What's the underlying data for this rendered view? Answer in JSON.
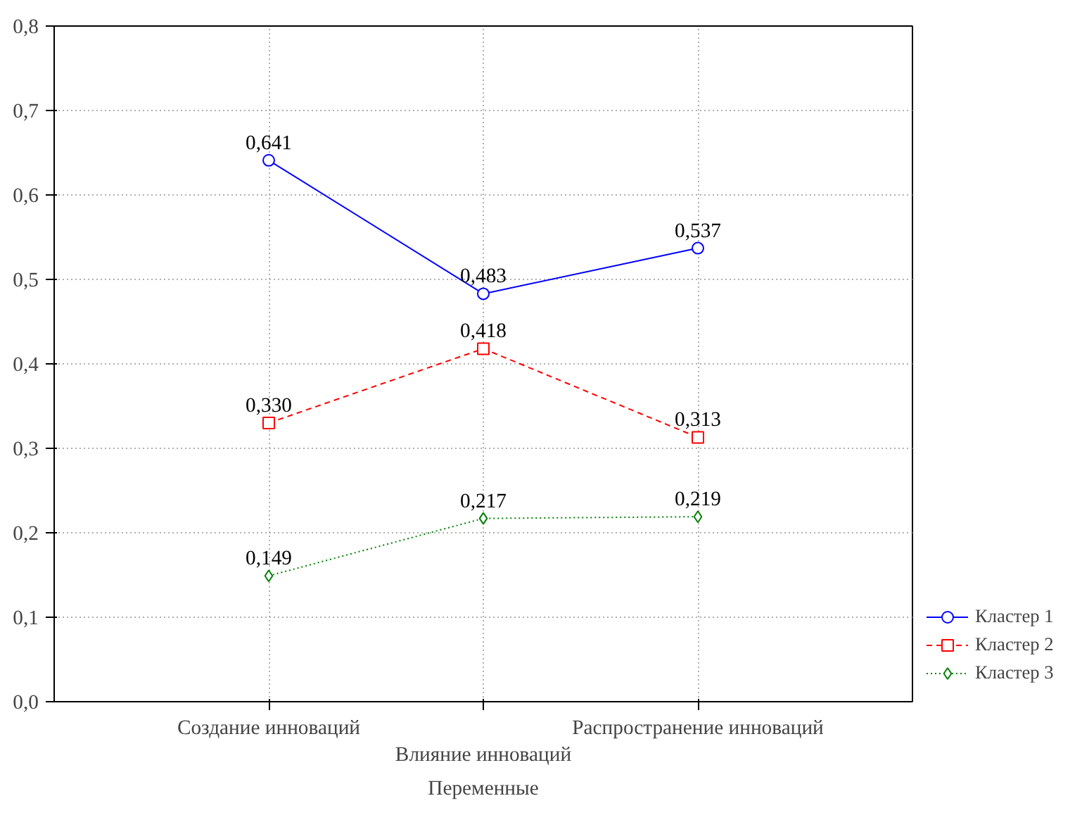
{
  "chart_data": {
    "type": "line",
    "xlabel": "Переменные",
    "categories": [
      "Создание инноваций",
      "Влияние инноваций",
      "Распространение инноваций"
    ],
    "ylim": [
      0,
      0.8
    ],
    "yticks": [
      {
        "value": 0,
        "label": "0,0"
      },
      {
        "value": 0.1,
        "label": "0,1"
      },
      {
        "value": 0.2,
        "label": "0,2"
      },
      {
        "value": 0.3,
        "label": "0,3"
      },
      {
        "value": 0.4,
        "label": "0,4"
      },
      {
        "value": 0.5,
        "label": "0,5"
      },
      {
        "value": 0.6,
        "label": "0,6"
      },
      {
        "value": 0.7,
        "label": "0,7"
      },
      {
        "value": 0.8,
        "label": "0,8"
      }
    ],
    "grid": true,
    "legend": "bottom right",
    "series": [
      {
        "name": "Кластер 1",
        "color": "#0000ff",
        "marker": "circle",
        "line_style": "solid",
        "values": [
          0.641,
          0.483,
          0.537
        ],
        "value_labels": [
          "0,641",
          "0,483",
          "0,537"
        ]
      },
      {
        "name": "Кластер 2",
        "color": "#ff0000",
        "marker": "square",
        "line_style": "dashed",
        "values": [
          0.33,
          0.418,
          0.313
        ],
        "value_labels": [
          "0,330",
          "0,418",
          "0,313"
        ]
      },
      {
        "name": "Кластер 3",
        "color": "#008000",
        "marker": "diamond",
        "line_style": "dotted",
        "values": [
          0.149,
          0.217,
          0.219
        ],
        "value_labels": [
          "0,149",
          "0,217",
          "0,219"
        ]
      }
    ]
  }
}
